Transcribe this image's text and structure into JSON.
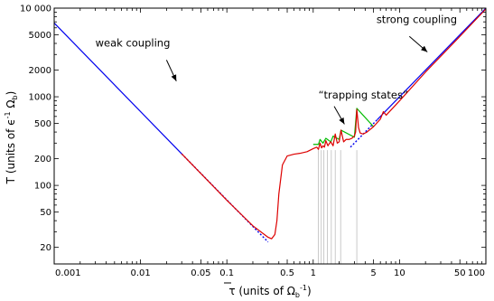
{
  "chart_data": {
    "type": "line",
    "title": "",
    "xlabel_main": "τ",
    "xlabel_rest": " (units of Ω",
    "xlabel_sub": "b",
    "xlabel_sup": "-1",
    "xlabel_close": ")",
    "ylabel_main": "T (units of ϵ",
    "ylabel_sup": "-1",
    "ylabel_mid": " Ω",
    "ylabel_sub": "b",
    "ylabel_close": ")",
    "xscale": "log",
    "yscale": "log",
    "xlim": [
      0.001,
      100
    ],
    "ylim": [
      13,
      10000
    ],
    "grid": false,
    "x_ticks": [
      {
        "v": 0.001,
        "label": "0.001"
      },
      {
        "v": 0.01,
        "label": "0.01"
      },
      {
        "v": 0.05,
        "label": "0.05"
      },
      {
        "v": 0.1,
        "label": "0.1"
      },
      {
        "v": 0.5,
        "label": "0.5"
      },
      {
        "v": 1,
        "label": "1"
      },
      {
        "v": 5,
        "label": "5"
      },
      {
        "v": 10,
        "label": "10"
      },
      {
        "v": 50,
        "label": "50"
      },
      {
        "v": 100,
        "label": "100"
      }
    ],
    "y_ticks": [
      {
        "v": 20,
        "label": "20"
      },
      {
        "v": 50,
        "label": "50"
      },
      {
        "v": 100,
        "label": "100"
      },
      {
        "v": 200,
        "label": "200"
      },
      {
        "v": 500,
        "label": "500"
      },
      {
        "v": 1000,
        "label": "1000"
      },
      {
        "v": 2000,
        "label": "2000"
      },
      {
        "v": 5000,
        "label": "5000"
      },
      {
        "v": 10000,
        "label": "10 000"
      }
    ],
    "series": [
      {
        "color": "#0000ee",
        "style": "solid",
        "x": [
          0.001,
          0.03
        ],
        "y": [
          6800,
          227
        ]
      },
      {
        "color": "#0000ee",
        "style": "dotted",
        "x": [
          0.03,
          0.3
        ],
        "y": [
          227,
          23
        ]
      },
      {
        "color": "#0000ee",
        "style": "dotted",
        "x": [
          2.7,
          5.5
        ],
        "y": [
          270,
          550
        ]
      },
      {
        "color": "#0000ee",
        "style": "solid",
        "x": [
          5.5,
          100
        ],
        "y": [
          550,
          10000
        ]
      },
      {
        "color": "#00bb00",
        "style": "solid",
        "x": [
          1.0,
          1.15,
          1.2,
          1.3,
          1.4,
          1.6,
          1.7,
          2.0,
          2.1,
          3.0,
          3.2,
          5.0
        ],
        "y": [
          290,
          290,
          330,
          300,
          340,
          310,
          360,
          330,
          420,
          350,
          740,
          460
        ]
      },
      {
        "color": "#dd0000",
        "style": "solid",
        "x": [
          0.03,
          0.1,
          0.2,
          0.3,
          0.33,
          0.36,
          0.38,
          0.4,
          0.44,
          0.5,
          0.6,
          0.7,
          0.85,
          1.0,
          1.1,
          1.15,
          1.2,
          1.25,
          1.3,
          1.35,
          1.4,
          1.48,
          1.55,
          1.6,
          1.7,
          1.8,
          1.9,
          2.0,
          2.1,
          2.25,
          2.4,
          2.6,
          2.8,
          3.0,
          3.1,
          3.2,
          3.35,
          3.5,
          3.8,
          4.2,
          5.0,
          6.0,
          6.5,
          7.0,
          10,
          20,
          50,
          100
        ],
        "y": [
          227,
          68,
          35,
          26,
          25,
          28,
          40,
          80,
          170,
          215,
          225,
          230,
          240,
          260,
          270,
          255,
          300,
          265,
          280,
          270,
          320,
          280,
          300,
          310,
          280,
          380,
          300,
          310,
          420,
          310,
          330,
          330,
          340,
          360,
          400,
          720,
          450,
          390,
          380,
          400,
          460,
          560,
          680,
          620,
          900,
          1900,
          4800,
          9800
        ]
      }
    ],
    "vertical_lines": [
      1.15,
      1.24,
      1.33,
      1.46,
      1.62,
      1.8,
      2.08,
      3.2
    ],
    "annotations": [
      {
        "text": "weak coupling",
        "x": 0.003,
        "y": 3700,
        "ax": 0.026,
        "ay": 1500,
        "bx": 0.02,
        "by": 2600
      },
      {
        "text": "“trapping states”",
        "x": 1.15,
        "y": 950,
        "ax": 2.3,
        "ay": 490,
        "bx": 1.75,
        "by": 780
      },
      {
        "text": "strong coupling",
        "x": 5.4,
        "y": 6800,
        "ax": 21,
        "ay": 3200,
        "bx": 13,
        "by": 4800
      }
    ]
  }
}
